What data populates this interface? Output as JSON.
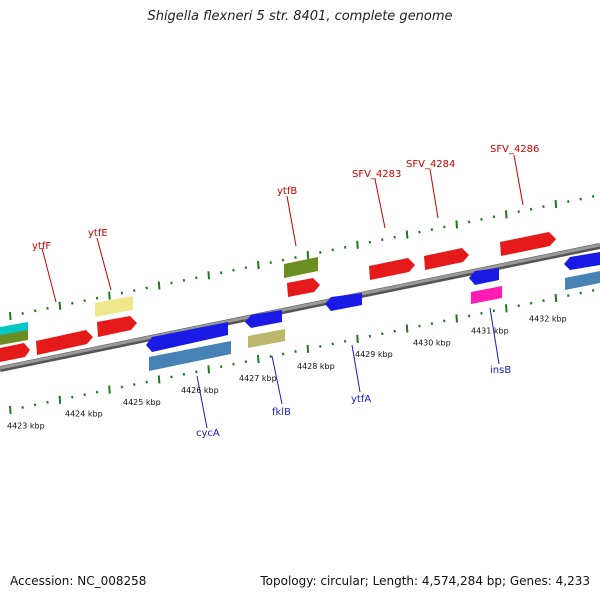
{
  "header": {
    "title": "Shigella flexneri 5 str. 8401, complete genome"
  },
  "footer": {
    "accession": "Accession: NC_008258",
    "topology": "Topology: circular; Length: 4,574,284 bp; Genes: 4,233"
  },
  "colors": {
    "backbone": "#7a7a7a",
    "ruler": "#1e7a1e",
    "forward_label": "#cc0000",
    "reverse_label": "#1a1acc"
  },
  "genome": {
    "ticks": [
      {
        "label": "4423 kbp",
        "pos": 4423
      },
      {
        "label": "4424 kbp",
        "pos": 4424
      },
      {
        "label": "4425 kbp",
        "pos": 4425
      },
      {
        "label": "4426 kbp",
        "pos": 4426
      },
      {
        "label": "4427 kbp",
        "pos": 4427
      },
      {
        "label": "4428 kbp",
        "pos": 4428
      },
      {
        "label": "4429 kbp",
        "pos": 4429
      },
      {
        "label": "4430 kbp",
        "pos": 4430
      },
      {
        "label": "4431 kbp",
        "pos": 4431
      },
      {
        "label": "4432 kbp",
        "pos": 4432
      }
    ],
    "labels_forward": [
      "ytfF",
      "ytfE",
      "ytfB",
      "SFV_4283",
      "SFV_4284",
      "SFV_4286"
    ],
    "labels_reverse": [
      "cycA",
      "fklB",
      "ytfA",
      "insB"
    ]
  }
}
